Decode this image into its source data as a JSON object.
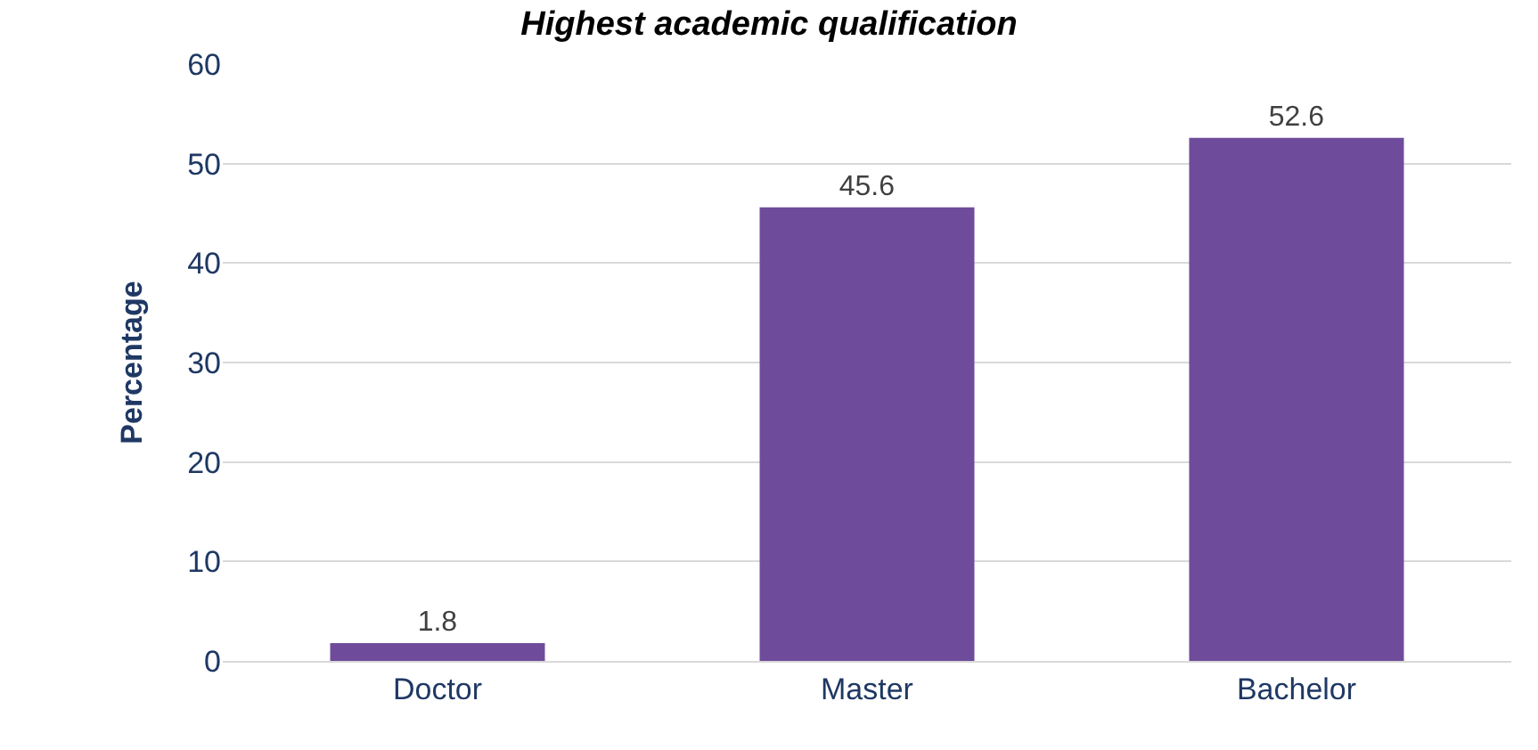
{
  "chart_data": {
    "type": "bar",
    "title": "Highest academic qualification",
    "ylabel": "Percentage",
    "categories": [
      "Doctor",
      "Master",
      "Bachelor"
    ],
    "values": [
      1.8,
      45.6,
      52.6
    ],
    "color": "#6f4c9b",
    "ylim": [
      0,
      60
    ],
    "yticks": [
      0,
      10,
      20,
      30,
      40,
      50,
      60
    ],
    "grid": "y",
    "data_labels": true
  }
}
